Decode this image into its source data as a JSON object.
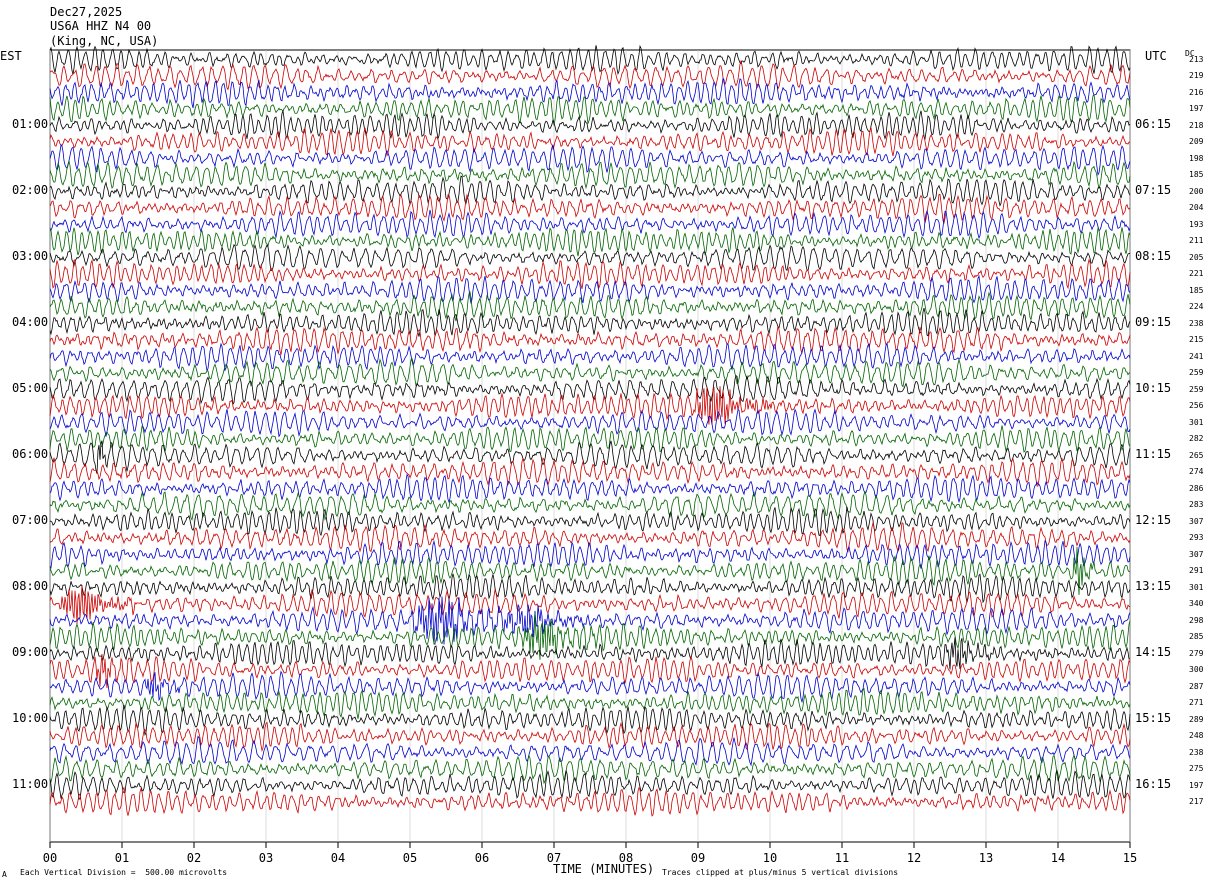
{
  "header": {
    "date": "Dec27,2025",
    "station": "US6A HHZ N4 00",
    "location": "(King, NC, USA)"
  },
  "left_axis_label": "EST",
  "right_axis_label": "UTC",
  "dc_label": "DC",
  "footer": {
    "scale_note": "Each Vertical Division =  500.00 microvolts",
    "clip_note": "Traces clipped at plus/minus 5 vertical divisions",
    "corner_mark": "A"
  },
  "chart_data": {
    "type": "seismogram",
    "xlabel": "TIME (MINUTES)",
    "xlim": [
      0,
      15
    ],
    "x_ticks": [
      "00",
      "01",
      "02",
      "03",
      "04",
      "05",
      "06",
      "07",
      "08",
      "09",
      "10",
      "11",
      "12",
      "13",
      "14",
      "15"
    ],
    "rows_per_hour": 4,
    "row_minutes": 15,
    "trace_colors": [
      "#000000",
      "#cc0000",
      "#0000cc",
      "#006400"
    ],
    "left_time_labels": [
      "01:00",
      "02:00",
      "03:00",
      "04:00",
      "05:00",
      "06:00",
      "07:00",
      "08:00",
      "09:00",
      "10:00",
      "11:00"
    ],
    "right_time_labels": [
      "06:15",
      "07:15",
      "08:15",
      "09:15",
      "10:15",
      "11:15",
      "12:15",
      "13:15",
      "14:15",
      "15:15",
      "16:15"
    ],
    "dc_values": [
      213,
      219,
      216,
      197,
      218,
      209,
      198,
      185,
      200,
      204,
      193,
      211,
      205,
      221,
      185,
      224,
      238,
      215,
      241,
      259,
      259,
      256,
      301,
      282,
      265,
      274,
      286,
      283,
      307,
      293,
      307,
      291,
      301,
      340,
      298,
      285,
      279,
      300,
      287,
      271,
      289,
      248,
      238,
      275,
      197,
      217
    ],
    "events": [
      {
        "row": 21,
        "start_min": 8.9,
        "end_min": 10.0,
        "amp": 2.2
      },
      {
        "row": 34,
        "start_min": 5.0,
        "end_min": 6.4,
        "amp": 2.4
      },
      {
        "row": 34,
        "start_min": 6.3,
        "end_min": 7.5,
        "amp": 1.5
      },
      {
        "row": 35,
        "start_min": 6.5,
        "end_min": 7.6,
        "amp": 2.0
      },
      {
        "row": 33,
        "start_min": 0.1,
        "end_min": 1.2,
        "amp": 2.0
      },
      {
        "row": 37,
        "start_min": 0.6,
        "end_min": 1.1,
        "amp": 1.6
      },
      {
        "row": 38,
        "start_min": 1.3,
        "end_min": 1.8,
        "amp": 1.4
      },
      {
        "row": 36,
        "start_min": 12.4,
        "end_min": 13.1,
        "amp": 1.6
      },
      {
        "row": 31,
        "start_min": 14.2,
        "end_min": 14.5,
        "amp": 2.6
      },
      {
        "row": 24,
        "start_min": 0.6,
        "end_min": 0.9,
        "amp": 1.4
      }
    ]
  }
}
